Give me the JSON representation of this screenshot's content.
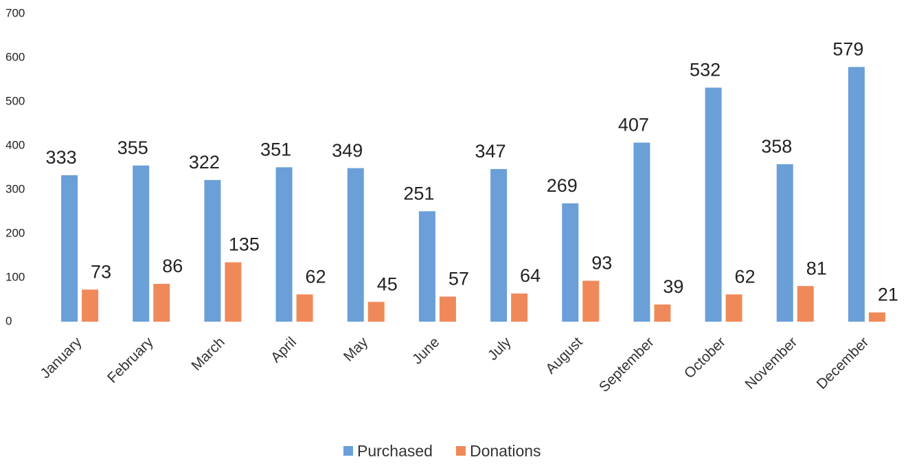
{
  "chart_data": {
    "type": "bar",
    "categories": [
      "January",
      "February",
      "March",
      "April",
      "May",
      "June",
      "July",
      "August",
      "September",
      "October",
      "November",
      "December"
    ],
    "series": [
      {
        "name": "Purchased",
        "color": "#6a9fd8",
        "values": [
          333,
          355,
          322,
          351,
          349,
          251,
          347,
          269,
          407,
          532,
          358,
          579
        ]
      },
      {
        "name": "Donations",
        "color": "#f0895a",
        "values": [
          73,
          86,
          135,
          62,
          45,
          57,
          64,
          93,
          39,
          62,
          81,
          21
        ]
      }
    ],
    "ylim": [
      0,
      700
    ],
    "yticks": [
      0,
      100,
      200,
      300,
      400,
      500,
      600,
      700
    ],
    "grid": false,
    "legend": "bottom"
  }
}
